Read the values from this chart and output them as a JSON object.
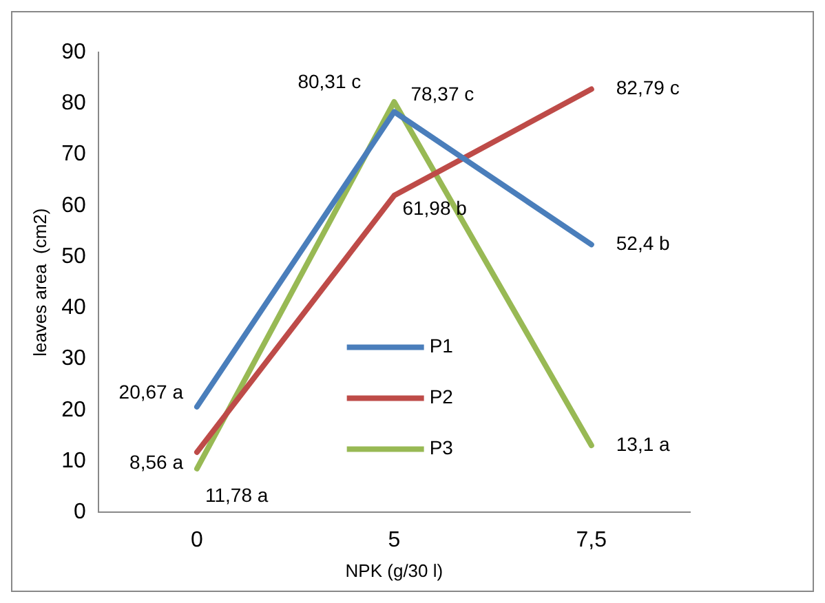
{
  "chart_data": {
    "type": "line",
    "xlabel": "NPK (g/30 l)",
    "ylabel": "leaves area  (cm2)",
    "categories": [
      "0",
      "5",
      "7,5"
    ],
    "series": [
      {
        "name": "P1",
        "color": "#4a7ebb",
        "values": [
          20.67,
          78.37,
          52.4
        ],
        "value_labels": [
          "20,67 a",
          "78,37 c",
          "52,4 b"
        ]
      },
      {
        "name": "P2",
        "color": "#be4b48",
        "values": [
          11.78,
          61.98,
          82.79
        ],
        "value_labels": [
          "11,78 a",
          "61,98 b",
          "82,79 c"
        ]
      },
      {
        "name": "P3",
        "color": "#98b954",
        "values": [
          8.56,
          80.31,
          13.1
        ],
        "value_labels": [
          "8,56 a",
          "80,31 c",
          "13,1 a"
        ]
      }
    ],
    "ylim": [
      0,
      90
    ],
    "yticks": [
      0,
      10,
      20,
      30,
      40,
      50,
      60,
      70,
      80,
      90
    ],
    "grid": false,
    "legend": "bottom",
    "marker": "none",
    "line_style": "solid"
  }
}
